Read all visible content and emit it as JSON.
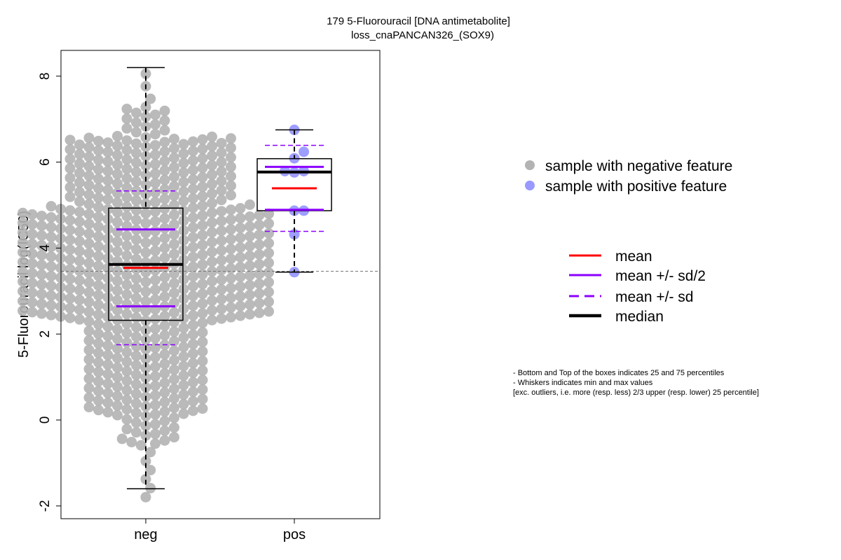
{
  "chart_data": {
    "type": "box",
    "title": "179 5-Fluorouracil [DNA antimetabolite]",
    "subtitle": "loss_cnaPANCAN326_(SOX9)",
    "xlabel": "",
    "ylabel": "5-Fluorouracil log(IC50)",
    "ylim": [
      -2.3,
      8.6
    ],
    "yticks": [
      -2,
      0,
      2,
      4,
      6,
      8
    ],
    "categories": [
      "neg",
      "pos"
    ],
    "reference_line": 3.46,
    "groups": [
      {
        "name": "neg",
        "color": "#b3b3b3",
        "n_points_approx": 620,
        "quantile_knots": [
          [
            0,
            -1.9
          ],
          [
            0.01,
            -0.6
          ],
          [
            0.04,
            0.1
          ],
          [
            0.25,
            2.32
          ],
          [
            0.5,
            3.62
          ],
          [
            0.75,
            4.93
          ],
          [
            0.97,
            6.6
          ],
          [
            0.995,
            7.3
          ],
          [
            1,
            8.2
          ]
        ],
        "q1": 2.32,
        "median": 3.62,
        "q3": 4.93,
        "mean": 3.54,
        "sd": 1.79,
        "whisker_low": -1.6,
        "whisker_high": 8.2
      },
      {
        "name": "pos",
        "color": "#9999ff",
        "values": [
          6.75,
          6.24,
          6.09,
          5.79,
          5.76,
          5.79,
          4.87,
          4.87,
          4.32,
          3.44
        ],
        "q1": 4.87,
        "median": 5.77,
        "q3": 6.08,
        "mean": 5.39,
        "sd": 1.0,
        "whisker_low": 3.44,
        "whisker_high": 6.75
      }
    ],
    "legend_points": [
      {
        "label": "sample with negative feature",
        "color": "#b3b3b3"
      },
      {
        "label": "sample with positive feature",
        "color": "#9999ff"
      }
    ],
    "legend_lines": [
      {
        "label": "mean",
        "color": "#ff0000",
        "style": "solid"
      },
      {
        "label": "mean +/- sd/2",
        "color": "#8b00ff",
        "style": "solid"
      },
      {
        "label": "mean +/- sd",
        "color": "#8b00ff",
        "style": "dashed"
      },
      {
        "label": "median",
        "color": "#000000",
        "style": "thick"
      }
    ],
    "notes": [
      "- Bottom and Top of the boxes indicates 25 and 75 percentiles",
      "- Whiskers indicates min and max values",
      "[exc. outliers, i.e. more (resp. less) 2/3 upper (resp. lower) 25 percentile]"
    ]
  }
}
